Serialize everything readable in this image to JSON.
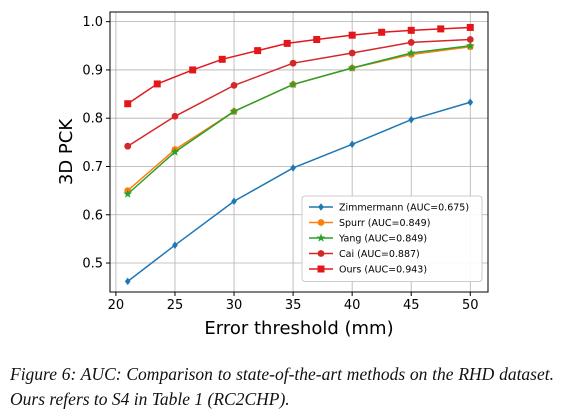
{
  "chart_data": {
    "type": "line",
    "xlabel": "Error threshold (mm)",
    "ylabel": "3D PCK",
    "xlim": [
      19.5,
      51.5
    ],
    "ylim": [
      0.44,
      1.02
    ],
    "xticks": [
      20,
      25,
      30,
      35,
      40,
      45,
      50
    ],
    "yticks": [
      0.5,
      0.6,
      0.7,
      0.8,
      0.9,
      1.0
    ],
    "grid": true,
    "legend_position": "lower-right",
    "series": [
      {
        "name": "Zimmermann (AUC=0.675)",
        "color": "#1f77b4",
        "marker": "diamond",
        "x": [
          21,
          25,
          30,
          35,
          40,
          45,
          50
        ],
        "y": [
          0.462,
          0.537,
          0.628,
          0.697,
          0.746,
          0.797,
          0.833
        ]
      },
      {
        "name": "Spurr (AUC=0.849)",
        "color": "#ff7f0e",
        "marker": "circle",
        "x": [
          21,
          25,
          30,
          35,
          40,
          45,
          50
        ],
        "y": [
          0.65,
          0.735,
          0.814,
          0.87,
          0.904,
          0.932,
          0.948
        ]
      },
      {
        "name": "Yang (AUC=0.849)",
        "color": "#2ca02c",
        "marker": "star",
        "x": [
          21,
          25,
          30,
          35,
          40,
          45,
          50
        ],
        "y": [
          0.643,
          0.73,
          0.814,
          0.87,
          0.904,
          0.935,
          0.95
        ]
      },
      {
        "name": "Cai (AUC=0.887)",
        "color": "#d62728",
        "marker": "circle",
        "x": [
          21,
          25,
          30,
          35,
          40,
          45,
          50
        ],
        "y": [
          0.742,
          0.804,
          0.868,
          0.914,
          0.935,
          0.957,
          0.963
        ]
      },
      {
        "name": "Ours (AUC=0.943)",
        "color": "#e3171b",
        "marker": "square",
        "x": [
          21,
          23.5,
          26.5,
          29,
          32,
          34.5,
          37,
          40,
          42.5,
          45,
          47.5,
          50
        ],
        "y": [
          0.83,
          0.871,
          0.9,
          0.922,
          0.94,
          0.955,
          0.963,
          0.972,
          0.978,
          0.982,
          0.985,
          0.988
        ]
      }
    ]
  },
  "caption": "Figure 6: AUC: Comparison to state-of-the-art methods on the RHD dataset. Ours refers to S4 in Table 1 (RC2CHP)."
}
